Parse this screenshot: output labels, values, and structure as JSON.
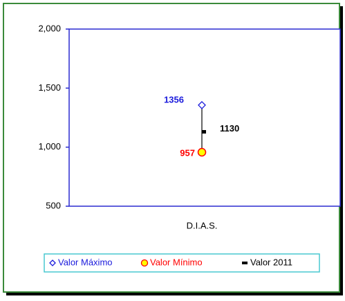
{
  "chart_data": {
    "type": "stock",
    "categories": [
      "D.I.A.S."
    ],
    "series": [
      {
        "name": "Valor Máximo",
        "color": "#1a1adc",
        "values": [
          1356
        ]
      },
      {
        "name": "Valor Mínimo",
        "color": "#ff0000",
        "values": [
          957
        ]
      },
      {
        "name": "Valor 2011",
        "color": "#000000",
        "values": [
          1130
        ]
      }
    ],
    "ylim": [
      500,
      2000
    ],
    "yticks": [
      500,
      {
        "value": 1000,
        "label": "1,000"
      },
      {
        "value": 1500,
        "label": "1,500"
      },
      {
        "value": 2000,
        "label": "2,000"
      }
    ]
  }
}
